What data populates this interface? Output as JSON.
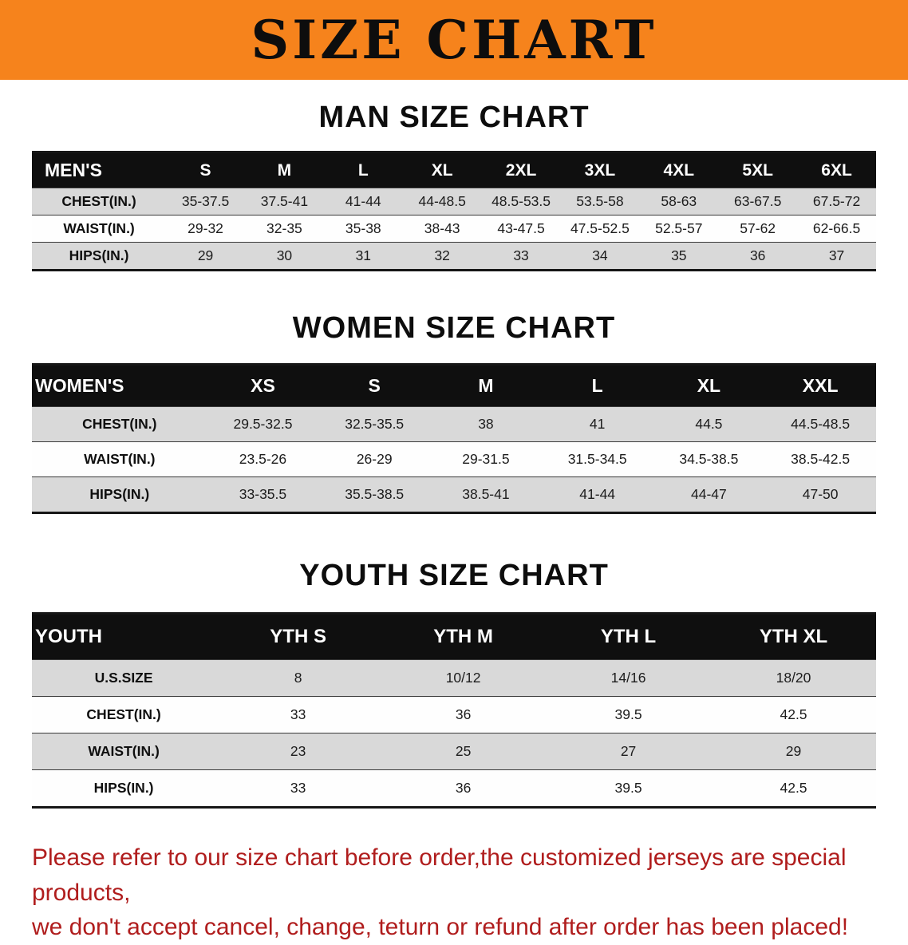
{
  "banner": {
    "title": "SIZE CHART"
  },
  "colors": {
    "banner_orange": "#f6831c",
    "header_black": "#0f0f0f",
    "stripe_gray": "#d9d9d9",
    "disclaimer_red": "#b01d1d"
  },
  "sections": [
    {
      "title": "MAN SIZE CHART",
      "table": {
        "header": [
          "MEN'S",
          "S",
          "M",
          "L",
          "XL",
          "2XL",
          "3XL",
          "4XL",
          "5XL",
          "6XL"
        ],
        "rows": [
          [
            "CHEST(IN.)",
            "35-37.5",
            "37.5-41",
            "41-44",
            "44-48.5",
            "48.5-53.5",
            "53.5-58",
            "58-63",
            "63-67.5",
            "67.5-72"
          ],
          [
            "WAIST(IN.)",
            "29-32",
            "32-35",
            "35-38",
            "38-43",
            "43-47.5",
            "47.5-52.5",
            "52.5-57",
            "57-62",
            "62-66.5"
          ],
          [
            "HIPS(IN.)",
            "29",
            "30",
            "31",
            "32",
            "33",
            "34",
            "35",
            "36",
            "37"
          ]
        ]
      }
    },
    {
      "title": "WOMEN SIZE CHART",
      "table": {
        "header": [
          "WOMEN'S",
          "XS",
          "S",
          "M",
          "L",
          "XL",
          "XXL"
        ],
        "rows": [
          [
            "CHEST(IN.)",
            "29.5-32.5",
            "32.5-35.5",
            "38",
            "41",
            "44.5",
            "44.5-48.5"
          ],
          [
            "WAIST(IN.)",
            "23.5-26",
            "26-29",
            "29-31.5",
            "31.5-34.5",
            "34.5-38.5",
            "38.5-42.5"
          ],
          [
            "HIPS(IN.)",
            "33-35.5",
            "35.5-38.5",
            "38.5-41",
            "41-44",
            "44-47",
            "47-50"
          ]
        ]
      }
    },
    {
      "title": "YOUTH SIZE CHART",
      "table": {
        "header": [
          "YOUTH",
          "YTH S",
          "YTH M",
          "YTH L",
          "YTH XL"
        ],
        "rows": [
          [
            "U.S.SIZE",
            "8",
            "10/12",
            "14/16",
            "18/20"
          ],
          [
            "CHEST(IN.)",
            "33",
            "36",
            "39.5",
            "42.5"
          ],
          [
            "WAIST(IN.)",
            "23",
            "25",
            "27",
            "29"
          ],
          [
            "HIPS(IN.)",
            "33",
            "36",
            "39.5",
            "42.5"
          ]
        ]
      }
    }
  ],
  "footer": {
    "line1": "Please refer to our size chart before order,the customized jerseys are special products,",
    "line2": "we don't accept cancel, change, teturn or refund after order has been placed!"
  }
}
